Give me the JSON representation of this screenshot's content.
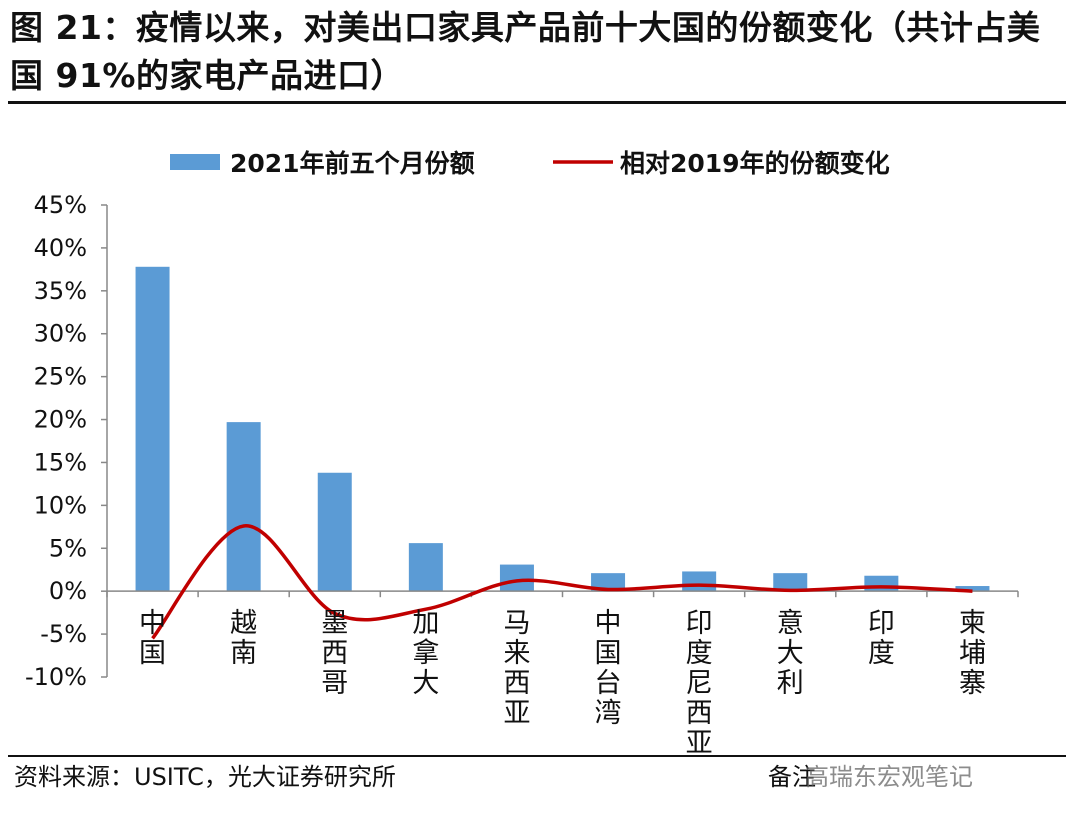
{
  "title": "图 21：疫情以来，对美出口家具产品前十大国的份额变化（共计占美国 91%的家电产品进口）",
  "source": "资料来源：USITC，光大证券研究所",
  "note": "备注",
  "watermark": "高瑞东宏观笔记",
  "colors": {
    "bar": "#5b9bd5",
    "line": "#c00000",
    "axis": "#888888"
  },
  "chart_data": {
    "type": "bar",
    "categories": [
      "中国",
      "越南",
      "墨西哥",
      "加拿大",
      "马来西亚",
      "中国台湾",
      "印度尼西亚",
      "意大利",
      "印度",
      "柬埔寨"
    ],
    "series": [
      {
        "name": "2021年前五个月份额",
        "type": "bar",
        "values": [
          37.8,
          19.7,
          13.8,
          5.6,
          3.1,
          2.1,
          2.3,
          2.1,
          1.8,
          0.6
        ]
      },
      {
        "name": "相对2019年的份额变化",
        "type": "line",
        "smooth": true,
        "values": [
          -5.5,
          7.6,
          -2.6,
          -2.1,
          1.2,
          0.2,
          0.7,
          0.1,
          0.5,
          0.0
        ]
      }
    ],
    "ylim": [
      -10,
      45
    ],
    "yticks": [
      "45%",
      "40%",
      "35%",
      "30%",
      "25%",
      "20%",
      "15%",
      "10%",
      "5%",
      "0%",
      "-5%",
      "-10%"
    ],
    "ytick_values": [
      45,
      40,
      35,
      30,
      25,
      20,
      15,
      10,
      5,
      0,
      -5,
      -10
    ],
    "legend_position": "top",
    "grid": false
  }
}
